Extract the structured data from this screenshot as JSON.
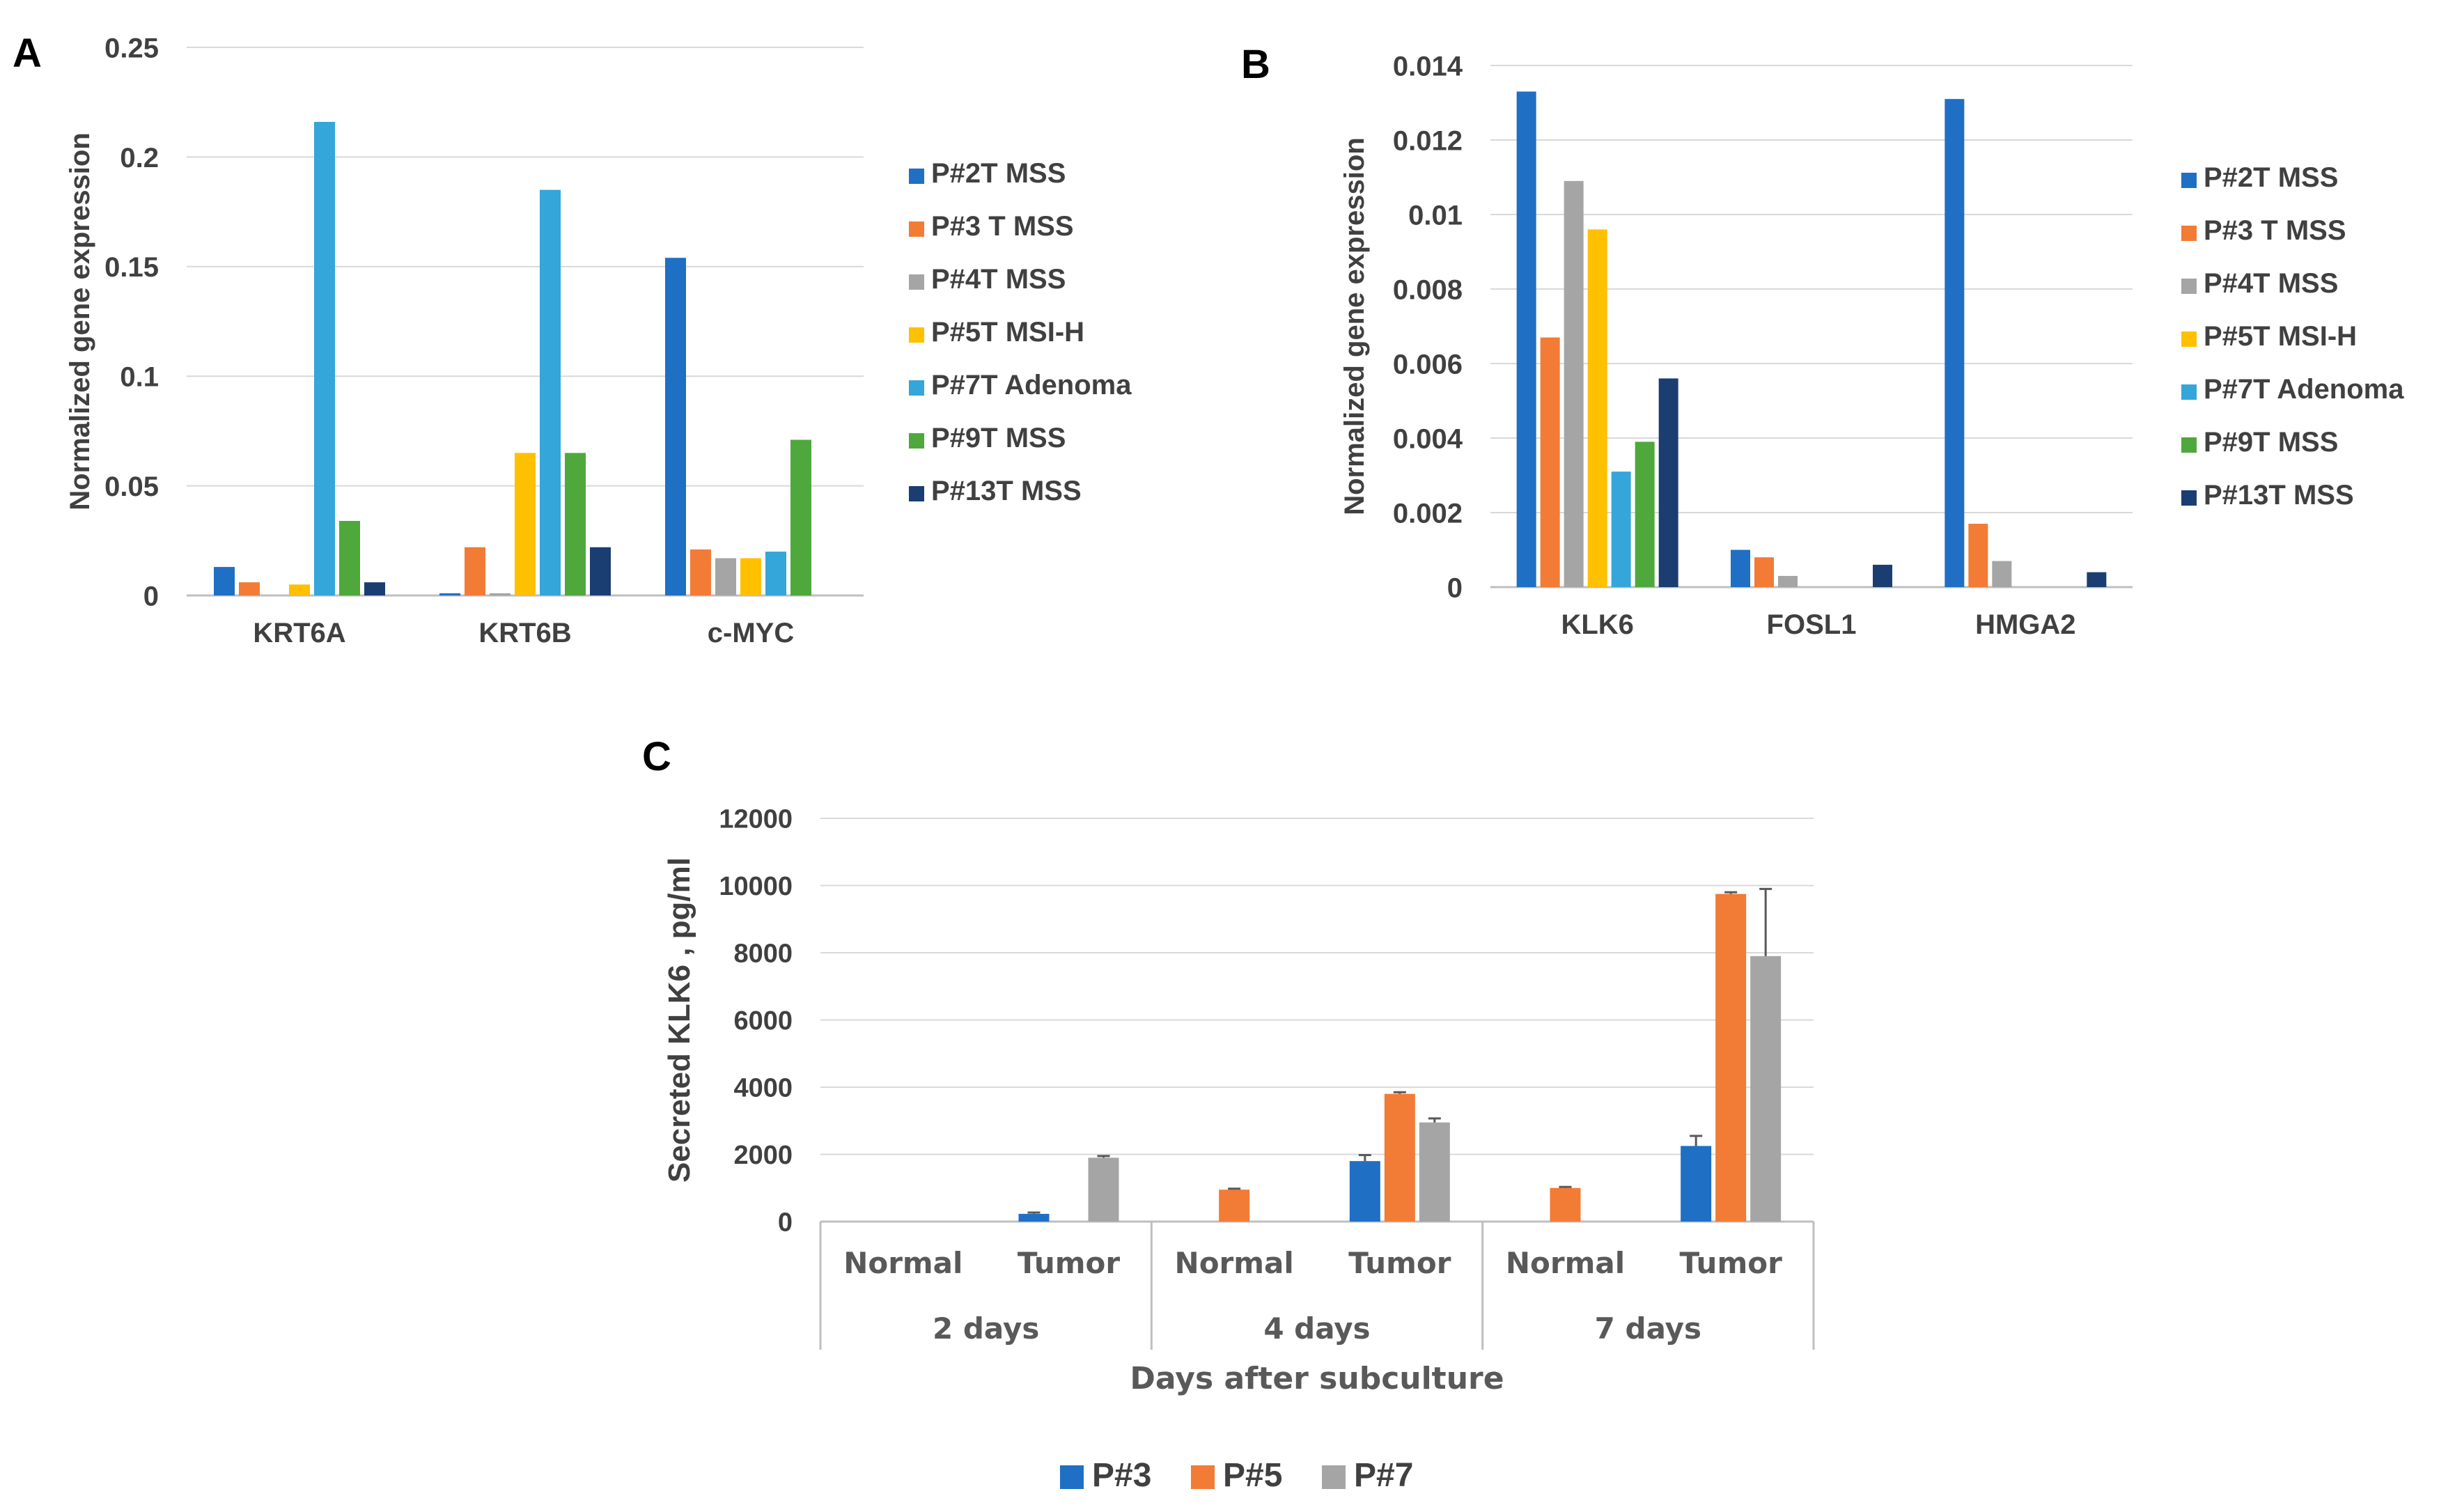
{
  "panels": [
    {
      "letter": "A"
    },
    {
      "letter": "B"
    },
    {
      "letter": "C"
    }
  ],
  "chart_data": [
    {
      "panel": "A",
      "type": "bar",
      "ylabel": "Normalized gene expression",
      "xlabel": "",
      "ylim": [
        0,
        0.25
      ],
      "yticks": [
        0,
        0.05,
        0.1,
        0.15,
        0.2,
        0.25
      ],
      "ytick_labels": [
        "0",
        "0.05",
        "0.1",
        "0.15",
        "0.2",
        "0.25"
      ],
      "grid": true,
      "legend_position": "right",
      "categories": [
        "KRT6A",
        "KRT6B",
        "c-MYC"
      ],
      "series": [
        {
          "name": "P#2T MSS",
          "color": "#1F6FC5",
          "values": [
            0.013,
            0.001,
            0.154
          ]
        },
        {
          "name": "P#3 T MSS",
          "color": "#F27B35",
          "values": [
            0.006,
            0.022,
            0.021
          ]
        },
        {
          "name": "P#4T MSS",
          "color": "#A5A5A5",
          "values": [
            0.0,
            0.001,
            0.017
          ]
        },
        {
          "name": "P#5T MSI-H",
          "color": "#FFC000",
          "values": [
            0.005,
            0.065,
            0.017
          ]
        },
        {
          "name": "P#7T Adenoma",
          "color": "#34A6D9",
          "values": [
            0.216,
            0.185,
            0.02
          ]
        },
        {
          "name": "P#9T MSS",
          "color": "#4EA83C",
          "values": [
            0.034,
            0.065,
            0.071
          ]
        },
        {
          "name": "P#13T MSS",
          "color": "#1A3E72",
          "values": [
            0.006,
            0.022,
            0.0
          ]
        }
      ]
    },
    {
      "panel": "B",
      "type": "bar",
      "ylabel": "Normalized gene expression",
      "xlabel": "",
      "ylim": [
        0,
        0.014
      ],
      "yticks": [
        0,
        0.002,
        0.004,
        0.006,
        0.008,
        0.01,
        0.012,
        0.014
      ],
      "ytick_labels": [
        "0",
        "0.002",
        "0.004",
        "0.006",
        "0.008",
        "0.01",
        "0.012",
        "0.014"
      ],
      "grid": true,
      "legend_position": "right",
      "categories": [
        "KLK6",
        "FOSL1",
        "HMGA2"
      ],
      "series": [
        {
          "name": "P#2T MSS",
          "color": "#1F6FC5",
          "values": [
            0.0133,
            0.001,
            0.0131
          ]
        },
        {
          "name": "P#3 T MSS",
          "color": "#F27B35",
          "values": [
            0.0067,
            0.0008,
            0.0017
          ]
        },
        {
          "name": "P#4T MSS",
          "color": "#A5A5A5",
          "values": [
            0.0109,
            0.0003,
            0.0007
          ]
        },
        {
          "name": "P#5T MSI-H",
          "color": "#FFC000",
          "values": [
            0.0096,
            0.0,
            0.0
          ]
        },
        {
          "name": "P#7T Adenoma",
          "color": "#34A6D9",
          "values": [
            0.0031,
            0.0,
            0.0
          ]
        },
        {
          "name": "P#9T MSS",
          "color": "#4EA83C",
          "values": [
            0.0039,
            0.0,
            0.0
          ]
        },
        {
          "name": "P#13T MSS",
          "color": "#1A3E72",
          "values": [
            0.0056,
            0.0006,
            0.0004
          ]
        }
      ]
    },
    {
      "panel": "C",
      "type": "bar",
      "ylabel": "Secreted KLK6 , pg/ml",
      "xlabel": "Days after subculture",
      "ylim": [
        0,
        12000
      ],
      "yticks": [
        0,
        2000,
        4000,
        6000,
        8000,
        10000,
        12000
      ],
      "ytick_labels": [
        "0",
        "2000",
        "4000",
        "6000",
        "8000",
        "10000",
        "12000"
      ],
      "grid": true,
      "legend_position": "bottom",
      "categories": [
        "Normal",
        "Tumor",
        "Normal",
        "Tumor",
        "Normal",
        "Tumor"
      ],
      "groups": [
        "2 days",
        "4 days",
        "7 days"
      ],
      "series": [
        {
          "name": "P#3",
          "color": "#1F6FC5",
          "values": [
            0,
            230,
            0,
            1800,
            0,
            2250
          ],
          "errors": [
            0,
            40,
            0,
            180,
            0,
            300
          ]
        },
        {
          "name": "P#5",
          "color": "#F27B35",
          "values": [
            0,
            0,
            950,
            3800,
            1000,
            9750
          ],
          "errors": [
            0,
            0,
            30,
            50,
            30,
            50
          ]
        },
        {
          "name": "P#7",
          "color": "#A5A5A5",
          "values": [
            0,
            1900,
            0,
            2950,
            0,
            7900
          ],
          "errors": [
            0,
            50,
            0,
            120,
            0,
            2000
          ]
        }
      ]
    }
  ]
}
